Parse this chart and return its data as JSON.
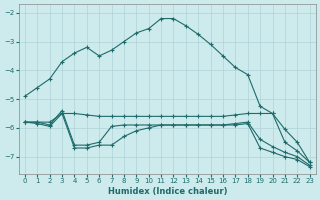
{
  "xlabel": "Humidex (Indice chaleur)",
  "background_color": "#cdeaec",
  "grid_color": "#b0d4d8",
  "line_color": "#1e6b6b",
  "xlim": [
    -0.5,
    23.5
  ],
  "ylim": [
    -7.6,
    -1.7
  ],
  "yticks": [
    -7,
    -6,
    -5,
    -4,
    -3,
    -2
  ],
  "xticks": [
    0,
    1,
    2,
    3,
    4,
    5,
    6,
    7,
    8,
    9,
    10,
    11,
    12,
    13,
    14,
    15,
    16,
    17,
    18,
    19,
    20,
    21,
    22,
    23
  ],
  "line1_x": [
    0,
    1,
    2,
    3,
    4,
    5,
    6,
    7,
    8,
    9,
    10,
    11,
    12,
    13,
    14,
    15,
    16,
    17,
    18,
    19,
    20,
    21,
    22,
    23
  ],
  "line1_y": [
    -4.9,
    -4.6,
    -4.3,
    -3.7,
    -3.4,
    -3.2,
    -3.5,
    -3.3,
    -3.0,
    -2.7,
    -2.55,
    -2.2,
    -2.2,
    -2.45,
    -2.75,
    -3.1,
    -3.5,
    -3.9,
    -4.15,
    -5.25,
    -5.5,
    -6.05,
    -6.5,
    -7.2
  ],
  "line2_x": [
    0,
    1,
    2,
    3,
    4,
    5,
    6,
    7,
    8,
    9,
    10,
    11,
    12,
    13,
    14,
    15,
    16,
    17,
    18,
    19,
    20,
    21,
    22,
    23
  ],
  "line2_y": [
    -5.8,
    -5.8,
    -5.8,
    -5.5,
    -5.5,
    -5.55,
    -5.6,
    -5.6,
    -5.6,
    -5.6,
    -5.6,
    -5.6,
    -5.6,
    -5.6,
    -5.6,
    -5.6,
    -5.6,
    -5.55,
    -5.5,
    -5.5,
    -5.5,
    -6.5,
    -6.8,
    -7.2
  ],
  "line3_x": [
    0,
    1,
    2,
    3,
    4,
    5,
    6,
    7,
    8,
    9,
    10,
    11,
    12,
    13,
    14,
    15,
    16,
    17,
    18,
    19,
    20,
    21,
    22,
    23
  ],
  "line3_y": [
    -5.8,
    -5.8,
    -5.9,
    -5.4,
    -6.6,
    -6.6,
    -6.5,
    -5.95,
    -5.9,
    -5.9,
    -5.9,
    -5.9,
    -5.9,
    -5.9,
    -5.9,
    -5.9,
    -5.9,
    -5.85,
    -5.8,
    -6.4,
    -6.65,
    -6.85,
    -7.0,
    -7.3
  ],
  "line4_x": [
    0,
    1,
    2,
    3,
    4,
    5,
    6,
    7,
    8,
    9,
    10,
    11,
    12,
    13,
    14,
    15,
    16,
    17,
    18,
    19,
    20,
    21,
    22,
    23
  ],
  "line4_y": [
    -5.8,
    -5.85,
    -5.95,
    -5.5,
    -6.7,
    -6.7,
    -6.6,
    -6.6,
    -6.3,
    -6.1,
    -6.0,
    -5.9,
    -5.9,
    -5.9,
    -5.9,
    -5.9,
    -5.9,
    -5.9,
    -5.85,
    -6.7,
    -6.85,
    -7.0,
    -7.1,
    -7.35
  ]
}
